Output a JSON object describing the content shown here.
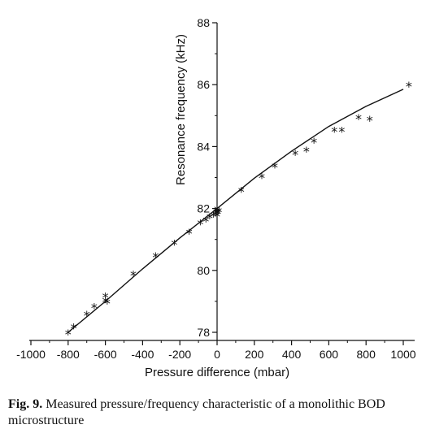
{
  "chart_data": {
    "type": "line",
    "title": "",
    "xlabel": "Pressure difference (mbar)",
    "ylabel": "Resonance frequency (kHz)",
    "xlim": [
      -1000,
      1000
    ],
    "ylim": [
      78,
      88
    ],
    "x_ticks": [
      -1000,
      -800,
      -600,
      -400,
      -200,
      0,
      200,
      400,
      600,
      800,
      1000
    ],
    "y_ticks": [
      78,
      80,
      82,
      84,
      86,
      88
    ],
    "x_tick_labels": [
      "-1000",
      "-800",
      "-600",
      "-400",
      "-200",
      "0",
      "200",
      "400",
      "600",
      "800",
      "1000"
    ],
    "y_tick_labels": [
      "78",
      "80",
      "82",
      "84",
      "86",
      "88"
    ],
    "grid": false,
    "legend": "none",
    "series": [
      {
        "kind": "line",
        "x": [
          -800,
          -600,
          -400,
          -200,
          0,
          200,
          400,
          600,
          800,
          1000
        ],
        "y": [
          78.0,
          79.0,
          80.05,
          81.05,
          82.0,
          82.98,
          83.85,
          84.65,
          85.3,
          85.85
        ]
      },
      {
        "kind": "scatter",
        "marker": "*",
        "x": [
          -800,
          -770,
          -700,
          -660,
          -600,
          -600,
          -590,
          -450,
          -330,
          -230,
          -150,
          -90,
          -60,
          -40,
          -20,
          -10,
          -5,
          0,
          0,
          0,
          5,
          10,
          130,
          240,
          310,
          420,
          480,
          520,
          630,
          670,
          760,
          820,
          1030
        ],
        "y": [
          78.0,
          78.2,
          78.6,
          78.85,
          79.2,
          79.05,
          79.0,
          79.9,
          80.5,
          80.9,
          81.25,
          81.55,
          81.65,
          81.75,
          81.8,
          81.85,
          81.9,
          81.95,
          81.8,
          82.0,
          81.9,
          81.95,
          82.6,
          83.05,
          83.4,
          83.8,
          83.9,
          84.2,
          84.55,
          84.55,
          84.95,
          84.9,
          86.0
        ]
      }
    ]
  },
  "caption": {
    "label": "Fig. 9.",
    "text": "Measured pressure/frequency characteristic of a monolithic BOD microstructure"
  }
}
